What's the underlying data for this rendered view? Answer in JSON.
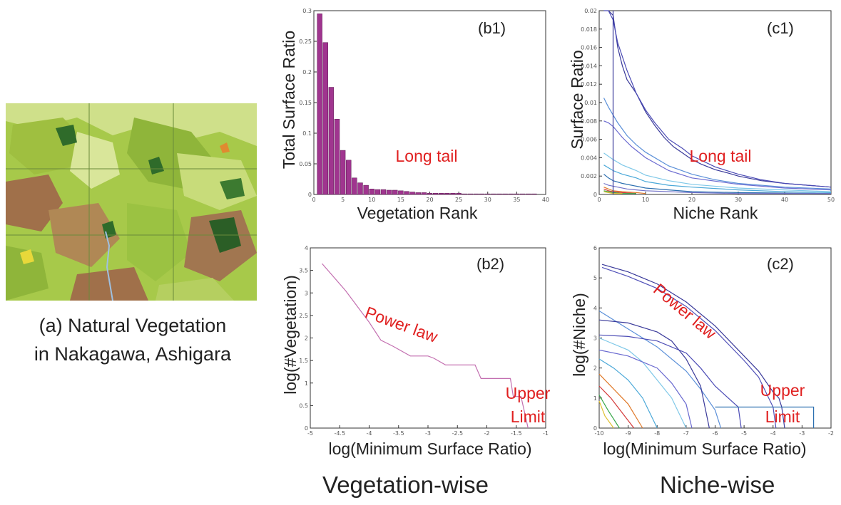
{
  "caption": {
    "line1": "(a) Natural Vegetation",
    "line2": "in Nakagawa, Ashigara"
  },
  "sections": {
    "left": "Vegetation-wise",
    "right": "Niche-wise"
  },
  "colors": {
    "bar": "#a0358f",
    "b2_line": "#c36fb0",
    "annotation": "#e02020"
  },
  "chart_data": [
    {
      "id": "b1",
      "type": "bar",
      "panel_label": "(b1)",
      "xlabel": "Vegetation Rank",
      "ylabel": "Total Surface Ratio",
      "xlim": [
        0,
        40
      ],
      "ylim": [
        0,
        0.3
      ],
      "xticks": [
        "0",
        "5",
        "10",
        "15",
        "20",
        "25",
        "30",
        "35",
        "40"
      ],
      "yticks": [
        "0",
        "0.05",
        "0.1",
        "0.15",
        "0.2",
        "0.25",
        "0.3"
      ],
      "annotations": [
        "Long tail"
      ],
      "x": [
        1,
        2,
        3,
        4,
        5,
        6,
        7,
        8,
        9,
        10,
        11,
        12,
        13,
        14,
        15,
        16,
        17,
        18,
        19,
        20,
        21,
        22,
        23,
        24,
        25,
        26,
        27,
        28,
        29,
        30,
        31,
        32,
        33,
        34,
        35,
        36,
        37,
        38
      ],
      "values": [
        0.295,
        0.248,
        0.175,
        0.123,
        0.072,
        0.056,
        0.027,
        0.019,
        0.015,
        0.009,
        0.008,
        0.008,
        0.007,
        0.007,
        0.006,
        0.005,
        0.004,
        0.003,
        0.003,
        0.002,
        0.002,
        0.002,
        0.002,
        0.002,
        0.002,
        0.001,
        0.001,
        0.001,
        0.001,
        0.001,
        0.001,
        0.001,
        0.001,
        0.001,
        0.001,
        0.001,
        0.001,
        0.001
      ]
    },
    {
      "id": "c1",
      "type": "line",
      "panel_label": "(c1)",
      "xlabel": "Niche Rank",
      "ylabel": "Surface Ratio",
      "xlim": [
        0,
        50
      ],
      "ylim": [
        0,
        0.02
      ],
      "xticks": [
        "0",
        "10",
        "20",
        "30",
        "40",
        "50"
      ],
      "yticks": [
        "0",
        "0.002",
        "0.004",
        "0.006",
        "0.008",
        "0.01",
        "0.012",
        "0.014",
        "0.016",
        "0.018",
        "0.02"
      ],
      "annotations": [
        "Long tail"
      ],
      "series": [
        {
          "color": "#3a3a9a",
          "x": [
            2,
            3,
            4,
            5,
            6,
            8,
            10,
            12,
            14,
            16,
            18,
            20,
            22,
            25,
            28,
            30,
            35,
            40,
            45,
            50
          ],
          "values": [
            0.021,
            0.0195,
            0.016,
            0.014,
            0.0125,
            0.011,
            0.009,
            0.0075,
            0.0062,
            0.0052,
            0.0045,
            0.0038,
            0.0033,
            0.0027,
            0.0023,
            0.002,
            0.0015,
            0.0012,
            0.001,
            0.0008
          ]
        },
        {
          "color": "#4b4bb5",
          "x": [
            1,
            2,
            3,
            4,
            6,
            8,
            10,
            12,
            15,
            18,
            20,
            25,
            30,
            35,
            40,
            45,
            50
          ],
          "values": [
            0.02,
            0.0205,
            0.019,
            0.0165,
            0.0135,
            0.011,
            0.0092,
            0.0078,
            0.006,
            0.005,
            0.0042,
            0.003,
            0.0022,
            0.0016,
            0.0012,
            0.001,
            0.0008
          ]
        },
        {
          "color": "#5a8fd8",
          "x": [
            1,
            2,
            4,
            6,
            8,
            10,
            15,
            20,
            25,
            30,
            40,
            50
          ],
          "values": [
            0.0105,
            0.0095,
            0.0078,
            0.0064,
            0.0054,
            0.0046,
            0.0031,
            0.0022,
            0.0016,
            0.0012,
            0.0008,
            0.0006
          ]
        },
        {
          "color": "#6a6ad0",
          "x": [
            1,
            2,
            3,
            5,
            7,
            10,
            15,
            20,
            30,
            40,
            50
          ],
          "values": [
            0.008,
            0.0078,
            0.0074,
            0.0062,
            0.0052,
            0.004,
            0.0026,
            0.0018,
            0.0011,
            0.0007,
            0.0005
          ]
        },
        {
          "color": "#7fc8e8",
          "x": [
            1,
            3,
            5,
            8,
            10,
            15,
            20,
            30,
            40,
            50
          ],
          "values": [
            0.0045,
            0.0038,
            0.0032,
            0.0026,
            0.0021,
            0.0015,
            0.0011,
            0.0007,
            0.0005,
            0.0003
          ]
        },
        {
          "color": "#4aa8d8",
          "x": [
            1,
            3,
            5,
            8,
            10,
            15,
            20,
            30,
            40,
            50
          ],
          "values": [
            0.0032,
            0.0026,
            0.0022,
            0.0018,
            0.0014,
            0.001,
            0.0008,
            0.0005,
            0.0003,
            0.0002
          ]
        },
        {
          "color": "#2c6fb0",
          "x": [
            1,
            2,
            3,
            5,
            8,
            10,
            15,
            20,
            30,
            50
          ],
          "values": [
            0.0022,
            0.0018,
            0.0015,
            0.0012,
            0.0009,
            0.0007,
            0.0005,
            0.0003,
            0.0002,
            0.0001
          ]
        },
        {
          "color": "#7070c8",
          "x": [
            1,
            2,
            4,
            6,
            8,
            10,
            20,
            30,
            50
          ],
          "values": [
            0.0012,
            0.001,
            0.0008,
            0.0006,
            0.0005,
            0.0004,
            0.0002,
            0.0001,
            0.0001
          ]
        },
        {
          "color": "#e07a2a",
          "x": [
            1,
            2,
            3,
            5,
            8,
            10
          ],
          "values": [
            0.0008,
            0.0006,
            0.0004,
            0.0003,
            0.0002,
            0.0001
          ]
        },
        {
          "color": "#d43a3a",
          "x": [
            1,
            2,
            3,
            5,
            8
          ],
          "values": [
            0.0006,
            0.0004,
            0.0003,
            0.0002,
            0.0001
          ]
        },
        {
          "color": "#3aa84a",
          "x": [
            1,
            2,
            3,
            5,
            8
          ],
          "values": [
            0.0004,
            0.0003,
            0.0002,
            0.0001,
            0.0001
          ]
        },
        {
          "color": "#e0c030",
          "x": [
            1,
            2,
            3,
            5
          ],
          "values": [
            0.0003,
            0.0002,
            0.0001,
            0.0001
          ]
        },
        {
          "color": "#3a3a9a",
          "x": [
            3,
            3
          ],
          "values": [
            0.0205,
            0.0
          ]
        }
      ]
    },
    {
      "id": "b2",
      "type": "line",
      "panel_label": "(b2)",
      "xlabel": "log(Minimum  Surface Ratio)",
      "ylabel": "log(#Vegetation)",
      "xlim": [
        -5,
        -1
      ],
      "ylim": [
        0,
        4
      ],
      "xticks": [
        "-5",
        "-4.5",
        "-4",
        "-3.5",
        "-3",
        "-2.5",
        "-2",
        "-1.5",
        "-1"
      ],
      "yticks": [
        "0",
        "0.5",
        "1",
        "1.5",
        "2",
        "2.5",
        "3",
        "3.5",
        "4"
      ],
      "annotations": [
        "Power law",
        "Upper",
        "Limit"
      ],
      "series": [
        {
          "color": "#c36fb0",
          "x": [
            -4.8,
            -4.4,
            -4.0,
            -3.8,
            -3.6,
            -3.3,
            -3.0,
            -2.9,
            -2.7,
            -2.5,
            -2.2,
            -2.1,
            -1.8,
            -1.6,
            -1.55,
            -1.45,
            -1.42,
            -1.35,
            -1.3
          ],
          "values": [
            3.65,
            3.05,
            2.35,
            1.95,
            1.82,
            1.6,
            1.6,
            1.55,
            1.4,
            1.4,
            1.4,
            1.1,
            1.1,
            1.1,
            0.7,
            0.7,
            0.7,
            0.3,
            0.0
          ]
        }
      ]
    },
    {
      "id": "c2",
      "type": "line",
      "panel_label": "(c2)",
      "xlabel": "log(Minimum  Surface Ratio)",
      "ylabel": "log(#Niche)",
      "xlim": [
        -10,
        -2
      ],
      "ylim": [
        0,
        6
      ],
      "xticks": [
        "-10",
        "-9",
        "-8",
        "-7",
        "-6",
        "-5",
        "-4",
        "-3",
        "-2"
      ],
      "yticks": [
        "0",
        "1",
        "2",
        "3",
        "4",
        "5",
        "6"
      ],
      "annotations": [
        "Power law",
        "Upper",
        "Limit"
      ],
      "series": [
        {
          "color": "#3a3a9a",
          "x": [
            -9.9,
            -9,
            -8,
            -7,
            -6,
            -5.5,
            -5,
            -4.5,
            -4,
            -3.8,
            -3.7,
            -3.6
          ],
          "values": [
            5.45,
            5.2,
            4.8,
            4.2,
            3.4,
            2.9,
            2.4,
            1.9,
            1.2,
            1.0,
            0.7,
            0.0
          ]
        },
        {
          "color": "#5050b8",
          "x": [
            -9.9,
            -9,
            -8,
            -7,
            -6,
            -5.5,
            -5,
            -4.5,
            -4.2,
            -4,
            -3.9
          ],
          "values": [
            5.35,
            5.05,
            4.65,
            4.05,
            3.25,
            2.75,
            2.25,
            1.7,
            1.1,
            0.7,
            0.0
          ]
        },
        {
          "color": "#5a8fd8",
          "x": [
            -10,
            -9,
            -8,
            -7,
            -6.5,
            -6,
            -5.8
          ],
          "values": [
            3.9,
            3.3,
            2.7,
            1.9,
            1.3,
            0.6,
            0.0
          ]
        },
        {
          "color": "#3a3a9a",
          "x": [
            -10,
            -9,
            -8,
            -7.5,
            -7,
            -6.5,
            -6.2
          ],
          "values": [
            3.6,
            3.5,
            3.2,
            2.9,
            2.3,
            1.4,
            0.0
          ]
        },
        {
          "color": "#4b4bb5",
          "x": [
            -10,
            -9,
            -8,
            -7,
            -6.5,
            -6,
            -5.2,
            -5.1
          ],
          "values": [
            3.1,
            3.05,
            2.9,
            2.5,
            2.0,
            1.4,
            0.7,
            0.0
          ]
        },
        {
          "color": "#7fc8e8",
          "x": [
            -10,
            -9,
            -8.5,
            -8,
            -7.5,
            -7
          ],
          "values": [
            3.0,
            2.6,
            2.2,
            1.6,
            1.0,
            0.0
          ]
        },
        {
          "color": "#6a6ad0",
          "x": [
            -10,
            -9,
            -8,
            -7.5,
            -7,
            -6.8
          ],
          "values": [
            2.6,
            2.4,
            2.0,
            1.5,
            0.8,
            0.0
          ]
        },
        {
          "color": "#4aa8d8",
          "x": [
            -10,
            -9.5,
            -9,
            -8.5,
            -8
          ],
          "values": [
            2.3,
            2.0,
            1.6,
            1.0,
            0.0
          ]
        },
        {
          "color": "#e07a2a",
          "x": [
            -10,
            -9.5,
            -9,
            -8.5
          ],
          "values": [
            1.8,
            1.3,
            0.8,
            0.0
          ]
        },
        {
          "color": "#d43a3a",
          "x": [
            -10,
            -9.6,
            -9.2,
            -8.8
          ],
          "values": [
            1.4,
            1.0,
            0.5,
            0.0
          ]
        },
        {
          "color": "#3aa84a",
          "x": [
            -10,
            -9.7,
            -9.3
          ],
          "values": [
            1.1,
            0.6,
            0.0
          ]
        },
        {
          "color": "#e0c030",
          "x": [
            -10,
            -9.8,
            -9.5
          ],
          "values": [
            0.9,
            0.4,
            0.0
          ]
        },
        {
          "color": "#2c6fb0",
          "x": [
            -6,
            -5,
            -4,
            -3,
            -2.6,
            -2.6
          ],
          "values": [
            0.7,
            0.7,
            0.7,
            0.7,
            0.7,
            0.0
          ]
        }
      ]
    }
  ]
}
